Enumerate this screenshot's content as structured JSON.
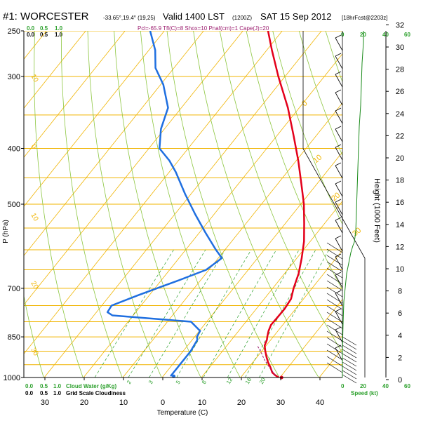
{
  "header": {
    "station": "#1: WORCESTER",
    "coords": "-33.65°,19.4° (19,25)",
    "valid": "Valid 1400 LST",
    "utc": "(1200Z)",
    "date": "SAT 15 Sep 2012",
    "fcst": "[18hrFcst@2203z]"
  },
  "indices": "Pcl=-65.9  Tfl(C)=8  Shox=10  Pnaf(cm)=1  Cape(J)=20",
  "labels": {
    "pressure": "P (hPa)",
    "height": "Height (1000 Feet)",
    "temperature": "Temperature (C)",
    "cloud_water": "Cloud Water (g/Kg)",
    "cloudiness": "Grid Scale Cloudiness",
    "speed": "Speed (kt)"
  },
  "top_scale": {
    "green": [
      "0.0",
      "0.5",
      "1.0"
    ],
    "black": [
      "0.0",
      "0.5",
      "1.0"
    ]
  },
  "bottom_scale": {
    "green": [
      "0.0",
      "0.5",
      "1.0"
    ],
    "black": [
      "0.0",
      "0.5",
      "1.0"
    ]
  },
  "wind_scale_top": [
    "0",
    "20",
    "40",
    "60"
  ],
  "wind_scale_bottom": [
    "0",
    "20",
    "40",
    "60"
  ],
  "colors": {
    "isobar": "#f0b400",
    "isotherm": "#f0b400",
    "dry_adiabat": "#8cc63f",
    "mixing_ratio": "#2ca02c",
    "temperature": "#e3001b",
    "dewpoint": "#1f6fe0",
    "parcel": "#9b1c6e",
    "speed": "#1a8a1a"
  },
  "chart_data": {
    "type": "line",
    "title": "#1: WORCESTER -33.65°,19.4° (19,25) Valid 1400 LST (1200Z) SAT 15 Sep 2012 [18hrFcst@2203z]",
    "xlabel": "Temperature (C)",
    "ylabel": "P (hPa)",
    "y2label": "Height (1000 Feet)",
    "pressure_ticks": [
      1000,
      850,
      700,
      500,
      400,
      300,
      250
    ],
    "bottom_temperature_ticks": [
      30,
      20,
      10,
      0,
      10,
      20,
      30,
      40
    ],
    "height_ticks": [
      0,
      2,
      4,
      6,
      8,
      10,
      12,
      14,
      16,
      18,
      20,
      22,
      24,
      26,
      28,
      30,
      32
    ],
    "isotherm_labels": [
      "10",
      "0",
      "10",
      "20",
      "30"
    ],
    "dry_adiabat_labels": [
      "0",
      "10",
      "20",
      "30"
    ],
    "mixing_ratio_labels": [
      "2",
      "3",
      "5",
      "8",
      "12",
      "16",
      "20"
    ],
    "series": [
      {
        "name": "temperature",
        "pressure": [
          1000,
          990,
          980,
          960,
          940,
          920,
          900,
          880,
          860,
          850,
          830,
          810,
          790,
          760,
          730,
          700,
          660,
          620,
          580,
          540,
          500,
          460,
          420,
          380,
          340,
          300,
          270,
          250
        ],
        "values": [
          29.7,
          28.2,
          27.0,
          25.5,
          23.8,
          22.3,
          20.9,
          19.6,
          19.0,
          18.5,
          17.6,
          17.0,
          17.1,
          17.2,
          16.8,
          15.3,
          13.6,
          11.2,
          8.4,
          4.8,
          0.8,
          -4.1,
          -9.5,
          -15.8,
          -22.9,
          -31.7,
          -38.7,
          -43.6
        ]
      },
      {
        "name": "dewpoint",
        "pressure": [
          995,
          990,
          950,
          900,
          860,
          850,
          830,
          800,
          780,
          770,
          750,
          720,
          700,
          680,
          650,
          620,
          600,
          560,
          520,
          480,
          440,
          420,
          400,
          370,
          340,
          310,
          290,
          270,
          250
        ],
        "values": [
          1.9,
          1.9,
          1.9,
          1.9,
          1.3,
          0.6,
          0.2,
          -4.0,
          -25.3,
          -27.2,
          -27.5,
          -22.9,
          -19.5,
          -15.9,
          -10.7,
          -9.1,
          -12.3,
          -18.5,
          -24.9,
          -31.5,
          -38.3,
          -42.3,
          -47.3,
          -50.9,
          -53.4,
          -59.3,
          -64.7,
          -68.4,
          -73.6
        ]
      },
      {
        "name": "parcel",
        "pressure": [
          990,
          960,
          930,
          900,
          880
        ],
        "values": [
          28.3,
          25.2,
          22.3,
          19.7,
          17.7
        ]
      }
    ],
    "surface_point": {
      "pressure": 1000,
      "temperature": 30.4
    },
    "surface_dewpoint_point": {
      "pressure": 995,
      "dewpoint": 2.7
    }
  }
}
